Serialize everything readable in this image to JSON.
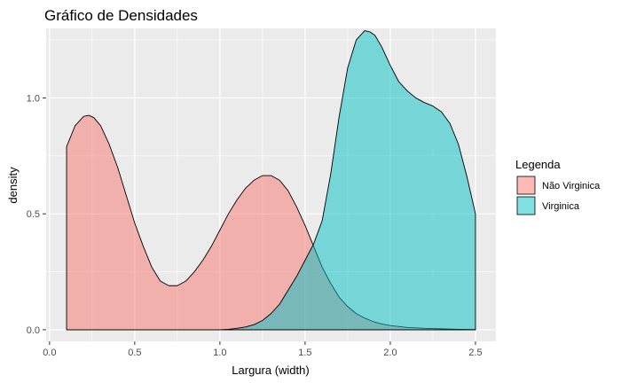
{
  "chart_data": {
    "type": "area",
    "title": "Gráfico de Densidades",
    "xlabel": "Largura (width)",
    "ylabel": "density",
    "xlim": [
      -0.02,
      2.62
    ],
    "ylim": [
      -0.05,
      1.3
    ],
    "x_ticks": [
      0.0,
      0.5,
      1.0,
      1.5,
      2.0,
      2.5
    ],
    "x_tick_labels": [
      "0.0",
      "0.5",
      "1.0",
      "1.5",
      "2.0",
      "2.5"
    ],
    "y_ticks": [
      0.0,
      0.5,
      1.0
    ],
    "y_tick_labels": [
      "0.0",
      "0.5",
      "1.0"
    ],
    "grid": true,
    "legend": {
      "title": "Legenda",
      "position": "right",
      "entries": [
        {
          "label": "Não Virginica",
          "color": "#F8766D"
        },
        {
          "label": "Virginica",
          "color": "#00BFC4"
        }
      ]
    },
    "series": [
      {
        "name": "Não Virginica",
        "color": "#F8766D",
        "x": [
          0.1,
          0.15,
          0.2,
          0.23,
          0.26,
          0.3,
          0.35,
          0.4,
          0.45,
          0.5,
          0.55,
          0.6,
          0.65,
          0.7,
          0.75,
          0.8,
          0.85,
          0.9,
          0.95,
          1.0,
          1.05,
          1.1,
          1.15,
          1.2,
          1.25,
          1.3,
          1.35,
          1.4,
          1.45,
          1.5,
          1.55,
          1.6,
          1.65,
          1.7,
          1.75,
          1.8,
          1.85,
          1.9,
          1.95,
          2.0,
          2.1,
          2.2,
          2.3,
          2.4,
          2.5
        ],
        "y": [
          0.79,
          0.88,
          0.92,
          0.925,
          0.915,
          0.88,
          0.8,
          0.7,
          0.58,
          0.46,
          0.36,
          0.27,
          0.21,
          0.19,
          0.19,
          0.21,
          0.25,
          0.3,
          0.36,
          0.43,
          0.5,
          0.56,
          0.61,
          0.645,
          0.665,
          0.665,
          0.645,
          0.6,
          0.53,
          0.45,
          0.36,
          0.27,
          0.2,
          0.14,
          0.1,
          0.07,
          0.05,
          0.035,
          0.025,
          0.018,
          0.01,
          0.006,
          0.004,
          0.002,
          0.001
        ]
      },
      {
        "name": "Virginica",
        "color": "#00BFC4",
        "x": [
          0.1,
          0.5,
          1.0,
          1.05,
          1.1,
          1.15,
          1.2,
          1.25,
          1.3,
          1.35,
          1.4,
          1.45,
          1.5,
          1.55,
          1.6,
          1.65,
          1.7,
          1.75,
          1.8,
          1.85,
          1.88,
          1.91,
          1.95,
          2.0,
          2.05,
          2.1,
          2.15,
          2.2,
          2.25,
          2.3,
          2.35,
          2.4,
          2.45,
          2.5
        ],
        "y": [
          0.0,
          0.0,
          0.0,
          0.002,
          0.006,
          0.012,
          0.022,
          0.04,
          0.07,
          0.11,
          0.17,
          0.23,
          0.3,
          0.37,
          0.47,
          0.67,
          0.92,
          1.13,
          1.25,
          1.29,
          1.285,
          1.27,
          1.22,
          1.14,
          1.07,
          1.03,
          1.0,
          0.98,
          0.965,
          0.94,
          0.89,
          0.8,
          0.66,
          0.5
        ]
      }
    ]
  }
}
